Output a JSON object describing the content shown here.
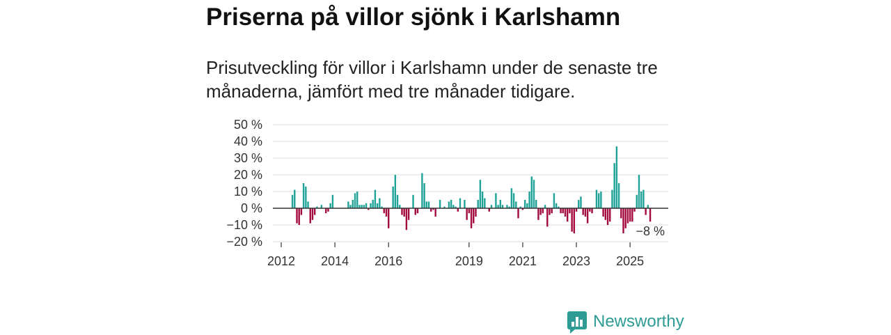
{
  "chart_data": {
    "type": "bar",
    "title": "Priserna på villor sjönk i Karlshamn",
    "subtitle": "Prisutveckling för villor i Karlshamn under de senaste tre månaderna, jämfört med tre månader tidigare.",
    "start_year": 2012,
    "start_month": 6,
    "values": [
      8,
      11,
      -9,
      -10,
      -4,
      15,
      13,
      4,
      -9,
      -7,
      -4,
      1,
      null,
      2,
      null,
      -3,
      -2,
      3,
      8,
      null,
      null,
      null,
      null,
      null,
      null,
      4,
      2,
      5,
      9,
      10,
      2,
      2,
      2,
      3,
      -1,
      3,
      5,
      11,
      3,
      6,
      1,
      -3,
      -5,
      -12,
      null,
      13,
      20,
      8,
      2,
      -4,
      -5,
      -13,
      -7,
      null,
      8,
      -4,
      -3,
      null,
      21,
      15,
      4,
      4,
      -2,
      -1,
      -5,
      null,
      5,
      null,
      1,
      null,
      4,
      5,
      2,
      1,
      -2,
      6,
      null,
      5,
      -7,
      -3,
      -12,
      -9,
      -5,
      5,
      17,
      10,
      6,
      null,
      -2,
      2,
      null,
      9,
      2,
      5,
      2,
      null,
      2,
      1,
      12,
      9,
      4,
      -6,
      1,
      -1,
      5,
      3,
      10,
      19,
      17,
      5,
      -7,
      -4,
      -3,
      2,
      -11,
      -4,
      -3,
      9,
      3,
      1,
      -3,
      -3,
      -5,
      -8,
      -3,
      -14,
      -15,
      -2,
      5,
      7,
      -4,
      -5,
      -9,
      -2,
      -3,
      null,
      11,
      9,
      10,
      -5,
      -7,
      -10,
      -8,
      11,
      27,
      37,
      15,
      -6,
      -15,
      -12,
      -9,
      -8,
      -8,
      -2,
      8,
      20,
      10,
      11,
      -4,
      2,
      -8
    ],
    "ylim": [
      -20,
      50
    ],
    "y_ticks": [
      50,
      40,
      30,
      20,
      10,
      0,
      -10,
      -20
    ],
    "y_tick_labels": [
      "50 %",
      "40 %",
      "30 %",
      "20 %",
      "10 %",
      "0 %",
      "−10 %",
      "−20 %"
    ],
    "x_ticks": [
      2012,
      2014,
      2016,
      2019,
      2021,
      2023,
      2025
    ],
    "x_tick_labels": [
      "2012",
      "2014",
      "2016",
      "2019",
      "2021",
      "2023",
      "2025"
    ],
    "grid": true,
    "positive_color": "#1fa398",
    "negative_color": "#a30a40",
    "annotation": {
      "label": "−8 %",
      "value": -8
    }
  },
  "branding": {
    "name": "Newsworthy",
    "color": "#2e9c94"
  }
}
